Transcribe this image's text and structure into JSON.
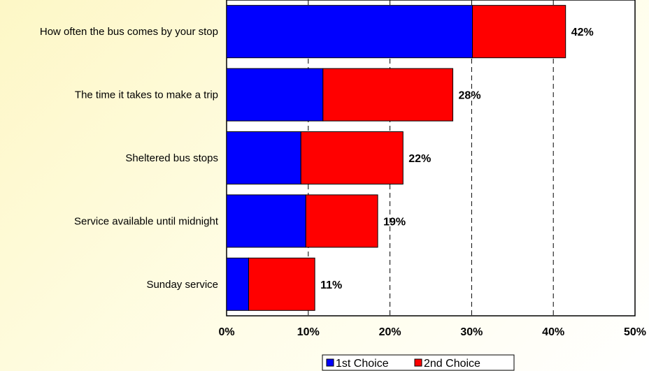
{
  "chart_data": {
    "type": "bar",
    "orientation": "horizontal",
    "stacked": true,
    "categories": [
      "How often the bus comes by your stop",
      "The time it takes to make a trip",
      "Sheltered bus stops",
      "Service available until midnight",
      "Sunday service"
    ],
    "series": [
      {
        "name": "1st Choice",
        "color": "#0000ff",
        "values": [
          30.1,
          11.8,
          9.1,
          9.7,
          2.7
        ]
      },
      {
        "name": "2nd Choice",
        "color": "#ff0000",
        "values": [
          11.4,
          15.9,
          12.5,
          8.8,
          8.1
        ]
      }
    ],
    "data_labels": [
      "42%",
      "28%",
      "22%",
      "19%",
      "11%"
    ],
    "x_ticks": [
      "0%",
      "10%",
      "20%",
      "30%",
      "40%",
      "50%"
    ],
    "xlim": [
      0,
      50
    ],
    "grid": "vertical dashed",
    "legend_position": "bottom"
  }
}
